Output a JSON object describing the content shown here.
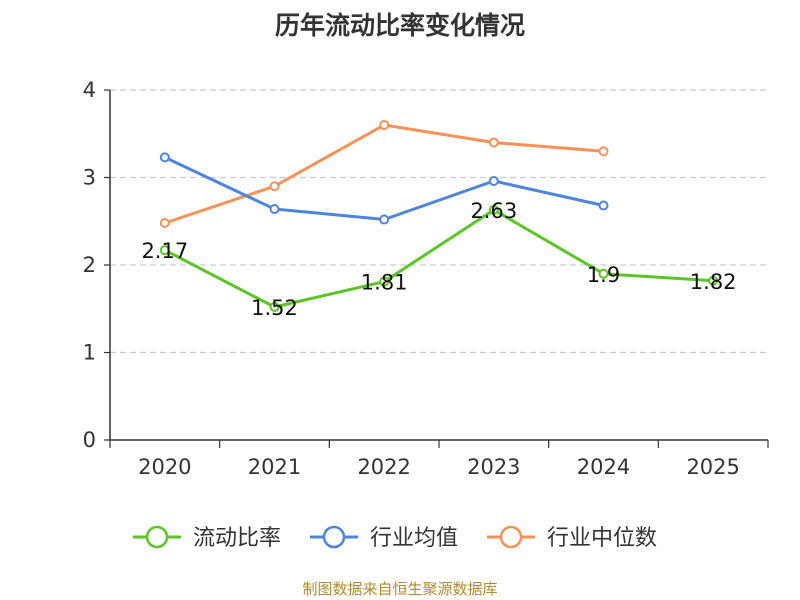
{
  "chart_data": {
    "type": "line",
    "title": "历年流动比率变化情况",
    "categories": [
      "2020",
      "2021",
      "2022",
      "2023",
      "2024",
      "2025"
    ],
    "ylim": [
      0,
      4
    ],
    "yticks": [
      "0",
      "1",
      "2",
      "3",
      "4"
    ],
    "grid": true,
    "legend_position": "bottom",
    "series": [
      {
        "name": "流动比率",
        "color": "#5dc428",
        "values": [
          2.17,
          1.52,
          1.81,
          2.63,
          1.9,
          1.82
        ],
        "labels": [
          "2.17",
          "1.52",
          "1.81",
          "2.63",
          "1.9",
          "1.82"
        ]
      },
      {
        "name": "行业均值",
        "color": "#4e84dc",
        "values": [
          3.23,
          2.64,
          2.52,
          2.96,
          2.68,
          null
        ]
      },
      {
        "name": "行业中位数",
        "color": "#f69158",
        "values": [
          2.48,
          2.9,
          3.6,
          3.4,
          3.3,
          null
        ]
      }
    ]
  },
  "source": "制图数据来自恒生聚源数据库"
}
